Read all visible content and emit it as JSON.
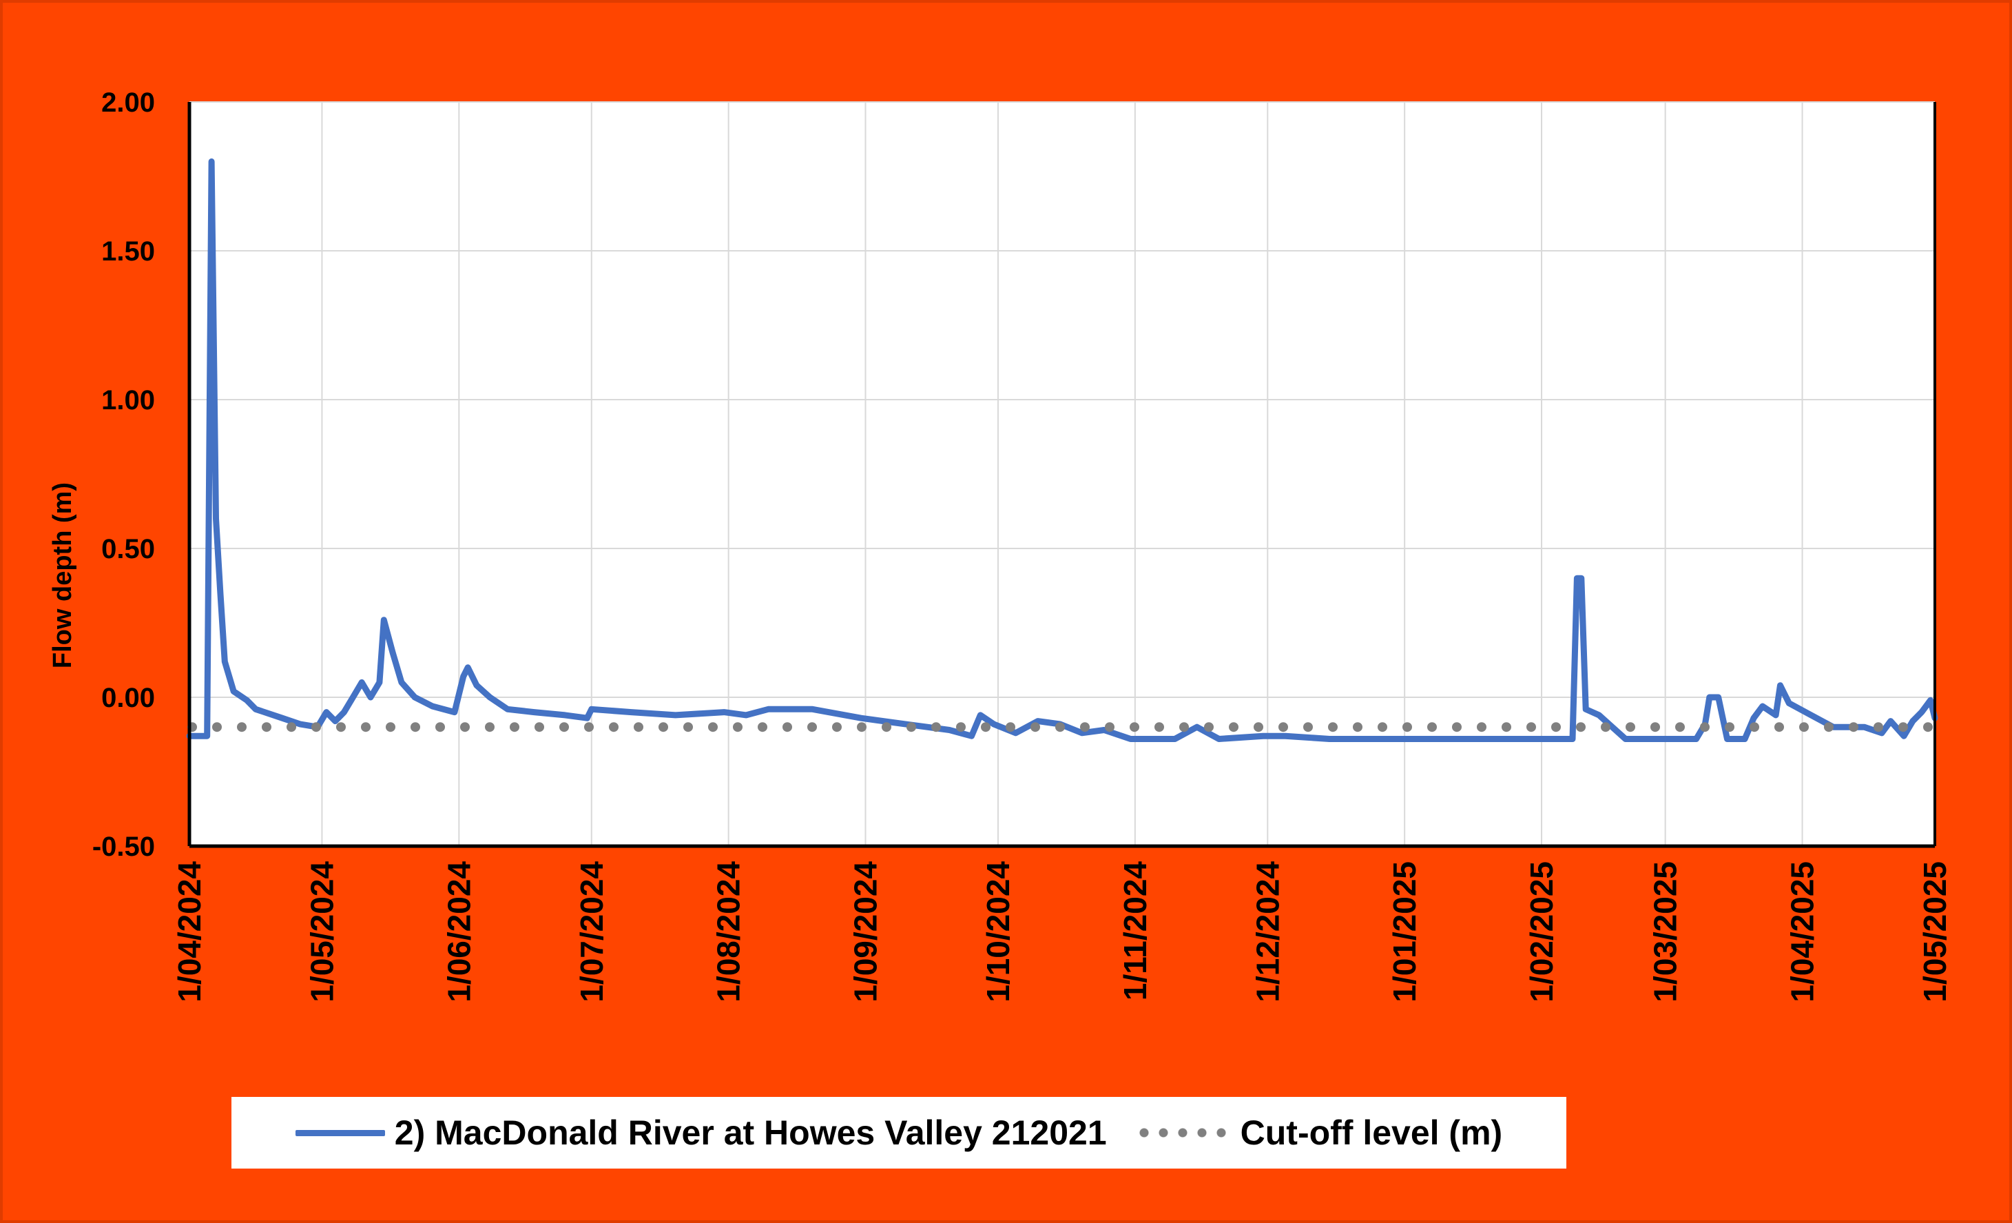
{
  "chart_data": {
    "type": "line",
    "ylabel": "Flow depth (m)",
    "xlabel": "",
    "ylim": [
      -0.5,
      2.0
    ],
    "yticks": [
      "-0.50",
      "0.00",
      "0.50",
      "1.00",
      "1.50",
      "2.00"
    ],
    "ytick_values": [
      -0.5,
      0.0,
      0.5,
      1.0,
      1.5,
      2.0
    ],
    "xlim": [
      "2024-04-01",
      "2025-05-01"
    ],
    "xticks": [
      {
        "label": "1/04/2024",
        "date": "2024-04-01"
      },
      {
        "label": "1/05/2024",
        "date": "2024-05-01"
      },
      {
        "label": "1/06/2024",
        "date": "2024-06-01"
      },
      {
        "label": "1/07/2024",
        "date": "2024-07-01"
      },
      {
        "label": "1/08/2024",
        "date": "2024-08-01"
      },
      {
        "label": "1/09/2024",
        "date": "2024-09-01"
      },
      {
        "label": "1/10/2024",
        "date": "2024-10-01"
      },
      {
        "label": "1/11/2024",
        "date": "2024-11-01"
      },
      {
        "label": "1/12/2024",
        "date": "2024-12-01"
      },
      {
        "label": "1/01/2025",
        "date": "2025-01-01"
      },
      {
        "label": "1/02/2025",
        "date": "2025-02-01"
      },
      {
        "label": "1/03/2025",
        "date": "2025-03-01"
      },
      {
        "label": "1/04/2025",
        "date": "2025-04-01"
      },
      {
        "label": "1/05/2025",
        "date": "2025-05-01"
      }
    ],
    "grid": true,
    "legend_position": "bottom",
    "series": [
      {
        "name": "2) MacDonald River at Howes Valley 212021",
        "color": "#4472c4",
        "style": "solid",
        "points": [
          [
            "2024-04-01",
            -0.13
          ],
          [
            "2024-04-05",
            -0.13
          ],
          [
            "2024-04-06",
            1.8
          ],
          [
            "2024-04-07",
            0.6
          ],
          [
            "2024-04-08",
            0.35
          ],
          [
            "2024-04-09",
            0.12
          ],
          [
            "2024-04-11",
            0.02
          ],
          [
            "2024-04-14",
            -0.01
          ],
          [
            "2024-04-16",
            -0.04
          ],
          [
            "2024-04-18",
            -0.05
          ],
          [
            "2024-04-22",
            -0.07
          ],
          [
            "2024-04-26",
            -0.09
          ],
          [
            "2024-04-30",
            -0.1
          ],
          [
            "2024-05-02",
            -0.05
          ],
          [
            "2024-05-04",
            -0.08
          ],
          [
            "2024-05-06",
            -0.05
          ],
          [
            "2024-05-08",
            0.0
          ],
          [
            "2024-05-10",
            0.05
          ],
          [
            "2024-05-12",
            0.0
          ],
          [
            "2024-05-14",
            0.05
          ],
          [
            "2024-05-15",
            0.26
          ],
          [
            "2024-05-17",
            0.15
          ],
          [
            "2024-05-19",
            0.05
          ],
          [
            "2024-05-22",
            0.0
          ],
          [
            "2024-05-26",
            -0.03
          ],
          [
            "2024-05-31",
            -0.05
          ],
          [
            "2024-06-02",
            0.07
          ],
          [
            "2024-06-03",
            0.1
          ],
          [
            "2024-06-05",
            0.04
          ],
          [
            "2024-06-08",
            0.0
          ],
          [
            "2024-06-12",
            -0.04
          ],
          [
            "2024-06-18",
            -0.05
          ],
          [
            "2024-06-25",
            -0.06
          ],
          [
            "2024-06-30",
            -0.07
          ],
          [
            "2024-07-01",
            -0.04
          ],
          [
            "2024-07-10",
            -0.05
          ],
          [
            "2024-07-20",
            -0.06
          ],
          [
            "2024-07-31",
            -0.05
          ],
          [
            "2024-08-05",
            -0.06
          ],
          [
            "2024-08-10",
            -0.04
          ],
          [
            "2024-08-20",
            -0.04
          ],
          [
            "2024-08-31",
            -0.07
          ],
          [
            "2024-09-10",
            -0.09
          ],
          [
            "2024-09-20",
            -0.11
          ],
          [
            "2024-09-25",
            -0.13
          ],
          [
            "2024-09-27",
            -0.06
          ],
          [
            "2024-09-30",
            -0.09
          ],
          [
            "2024-10-05",
            -0.12
          ],
          [
            "2024-10-10",
            -0.08
          ],
          [
            "2024-10-15",
            -0.09
          ],
          [
            "2024-10-20",
            -0.12
          ],
          [
            "2024-10-25",
            -0.11
          ],
          [
            "2024-10-31",
            -0.14
          ],
          [
            "2024-11-10",
            -0.14
          ],
          [
            "2024-11-15",
            -0.1
          ],
          [
            "2024-11-20",
            -0.14
          ],
          [
            "2024-11-30",
            -0.13
          ],
          [
            "2024-12-05",
            -0.13
          ],
          [
            "2024-12-15",
            -0.14
          ],
          [
            "2025-01-15",
            -0.14
          ],
          [
            "2025-02-08",
            -0.14
          ],
          [
            "2025-02-09",
            0.4
          ],
          [
            "2025-02-10",
            0.4
          ],
          [
            "2025-02-11",
            -0.04
          ],
          [
            "2025-02-14",
            -0.06
          ],
          [
            "2025-02-20",
            -0.14
          ],
          [
            "2025-03-08",
            -0.14
          ],
          [
            "2025-03-10",
            -0.09
          ],
          [
            "2025-03-11",
            0.0
          ],
          [
            "2025-03-13",
            0.0
          ],
          [
            "2025-03-15",
            -0.14
          ],
          [
            "2025-03-19",
            -0.14
          ],
          [
            "2025-03-21",
            -0.07
          ],
          [
            "2025-03-23",
            -0.03
          ],
          [
            "2025-03-26",
            -0.06
          ],
          [
            "2025-03-27",
            0.04
          ],
          [
            "2025-03-29",
            -0.02
          ],
          [
            "2025-04-03",
            -0.06
          ],
          [
            "2025-04-08",
            -0.1
          ],
          [
            "2025-04-15",
            -0.1
          ],
          [
            "2025-04-19",
            -0.12
          ],
          [
            "2025-04-21",
            -0.08
          ],
          [
            "2025-04-24",
            -0.13
          ],
          [
            "2025-04-26",
            -0.08
          ],
          [
            "2025-04-28",
            -0.05
          ],
          [
            "2025-04-30",
            -0.01
          ],
          [
            "2025-05-01",
            -0.07
          ]
        ]
      },
      {
        "name": "Cut-off level (m)",
        "color": "#808080",
        "style": "dotted",
        "points": [
          [
            "2024-04-01",
            -0.1
          ],
          [
            "2025-05-01",
            -0.1
          ]
        ]
      }
    ]
  }
}
